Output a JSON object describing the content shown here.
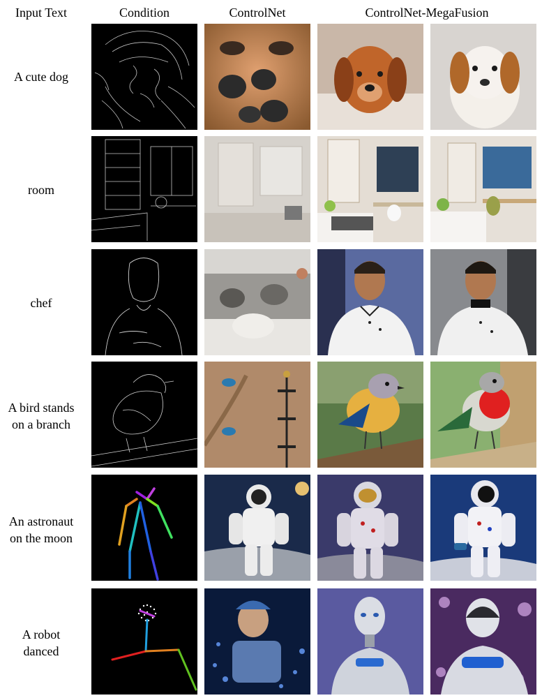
{
  "figure": {
    "column_headers": {
      "input_text": "Input Text",
      "condition": "Condition",
      "controlnet": "ControlNet",
      "megafusion": "ControlNet-MegaFusion"
    },
    "rows": [
      {
        "prompt_lines": [
          "A cute dog"
        ],
        "condition_type": "canny-edge",
        "images": [
          "dog-edges",
          "dog-noses-distorted",
          "dog-golden-puppy",
          "dog-white-brown-puppy"
        ]
      },
      {
        "prompt_lines": [
          "room"
        ],
        "condition_type": "canny-edge",
        "images": [
          "room-edges",
          "room-faded-white",
          "room-bedroom-desk",
          "room-bedroom-window"
        ]
      },
      {
        "prompt_lines": [
          "chef"
        ],
        "condition_type": "canny-edge",
        "images": [
          "chef-edges",
          "chef-kitchen-clutter",
          "chef-portrait-1",
          "chef-portrait-2"
        ]
      },
      {
        "prompt_lines": [
          "A bird stands",
          "on a branch"
        ],
        "condition_type": "canny-edge",
        "images": [
          "bird-edges",
          "bird-small-blue-on-wall",
          "bird-yellow-breast",
          "bird-red-breast"
        ]
      },
      {
        "prompt_lines": [
          "An astronaut",
          "on the moon"
        ],
        "condition_type": "pose-skeleton",
        "images": [
          "astronaut-skeleton",
          "astronaut-space",
          "astronaut-gold-visor",
          "astronaut-blue-background"
        ]
      },
      {
        "prompt_lines": [
          "A robot",
          "danced"
        ],
        "condition_type": "pose-skeleton",
        "images": [
          "robot-skeleton",
          "robot-blue-lights",
          "robot-silver-portrait",
          "robot-bokeh"
        ]
      }
    ]
  }
}
